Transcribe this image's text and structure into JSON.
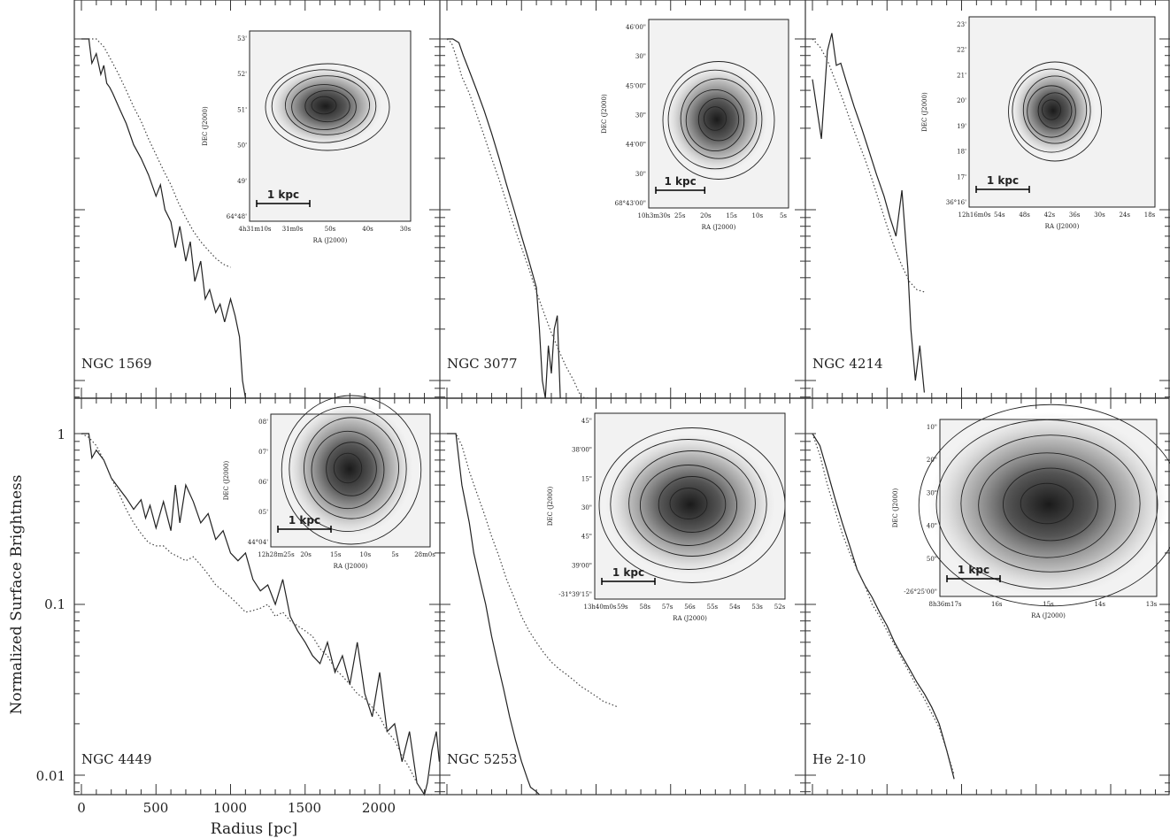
{
  "figure": {
    "ylabel": "Normalized Surface Brightness",
    "xlabel": "Radius [pc]",
    "x_ticks": [
      "0",
      "500",
      "1000",
      "1500",
      "2000"
    ],
    "y_ticks": [
      "1",
      "0.1",
      "0.01"
    ]
  },
  "chart_data": [
    {
      "type": "line",
      "panel": "NGC 1569",
      "xlim": [
        -60,
        2400
      ],
      "ylim": [
        0.0065,
        1.6
      ],
      "ylog": true,
      "series": [
        {
          "style": "solid",
          "x": [
            0,
            50,
            70,
            100,
            130,
            150,
            170,
            190,
            210,
            250,
            300,
            350,
            400,
            450,
            500,
            530,
            560,
            600,
            630,
            660,
            700,
            730,
            760,
            800,
            830,
            860,
            900,
            930,
            960,
            1000,
            1030,
            1060,
            1080,
            1100
          ],
          "y": [
            1,
            1,
            0.72,
            0.82,
            0.62,
            0.7,
            0.55,
            0.52,
            0.48,
            0.4,
            0.32,
            0.24,
            0.2,
            0.16,
            0.12,
            0.14,
            0.1,
            0.085,
            0.06,
            0.08,
            0.05,
            0.065,
            0.038,
            0.05,
            0.03,
            0.034,
            0.025,
            0.028,
            0.022,
            0.03,
            0.024,
            0.018,
            0.01,
            0.006
          ]
        },
        {
          "style": "dotted",
          "x": [
            0,
            50,
            100,
            150,
            200,
            250,
            300,
            350,
            400,
            450,
            500,
            550,
            600,
            650,
            700,
            750,
            800,
            850,
            900,
            950,
            1000
          ],
          "y": [
            1,
            1,
            1,
            0.9,
            0.75,
            0.62,
            0.5,
            0.4,
            0.33,
            0.26,
            0.21,
            0.17,
            0.14,
            0.11,
            0.09,
            0.075,
            0.065,
            0.058,
            0.052,
            0.048,
            0.046
          ]
        }
      ]
    },
    {
      "type": "line",
      "panel": "NGC 3077",
      "xlim": [
        -60,
        2400
      ],
      "ylim": [
        0.0065,
        1.6
      ],
      "ylog": true,
      "series": [
        {
          "style": "solid",
          "x": [
            0,
            40,
            80,
            110,
            150,
            200,
            250,
            300,
            350,
            400,
            450,
            500,
            550,
            600,
            620,
            640,
            660,
            680,
            700,
            720,
            740,
            760
          ],
          "y": [
            1,
            1,
            0.95,
            0.8,
            0.65,
            0.5,
            0.38,
            0.28,
            0.2,
            0.14,
            0.1,
            0.07,
            0.05,
            0.035,
            0.02,
            0.01,
            0.006,
            0.016,
            0.011,
            0.02,
            0.024,
            0.006
          ]
        },
        {
          "style": "dotted",
          "x": [
            0,
            30,
            60,
            100,
            150,
            200,
            250,
            300,
            350,
            400,
            450,
            500,
            550,
            600,
            650,
            700,
            750,
            800,
            850,
            900,
            950
          ],
          "y": [
            1,
            0.95,
            0.8,
            0.6,
            0.48,
            0.36,
            0.27,
            0.2,
            0.15,
            0.11,
            0.08,
            0.06,
            0.045,
            0.033,
            0.025,
            0.019,
            0.015,
            0.012,
            0.01,
            0.008,
            0.0065
          ]
        }
      ]
    },
    {
      "type": "line",
      "panel": "NGC 4214",
      "xlim": [
        -60,
        2400
      ],
      "ylim": [
        0.0065,
        1.6
      ],
      "ylog": true,
      "series": [
        {
          "style": "solid",
          "x": [
            0,
            60,
            100,
            130,
            160,
            190,
            230,
            280,
            330,
            380,
            430,
            480,
            520,
            560,
            600,
            640,
            660,
            690,
            720,
            750
          ],
          "y": [
            0.58,
            0.26,
            0.85,
            1.08,
            0.7,
            0.72,
            0.55,
            0.4,
            0.3,
            0.22,
            0.16,
            0.12,
            0.09,
            0.07,
            0.13,
            0.045,
            0.02,
            0.01,
            0.016,
            0.0085
          ]
        },
        {
          "style": "dotted",
          "x": [
            0,
            50,
            100,
            150,
            200,
            250,
            300,
            350,
            400,
            450,
            500,
            550,
            600,
            650,
            700,
            750
          ],
          "y": [
            1,
            0.9,
            0.75,
            0.58,
            0.45,
            0.34,
            0.26,
            0.2,
            0.15,
            0.11,
            0.08,
            0.06,
            0.047,
            0.038,
            0.034,
            0.033
          ]
        }
      ]
    },
    {
      "type": "line",
      "panel": "NGC 4449",
      "xlim": [
        -60,
        2400
      ],
      "ylim": [
        0.0065,
        1.6
      ],
      "ylog": true,
      "series": [
        {
          "style": "solid",
          "x": [
            0,
            50,
            70,
            100,
            150,
            200,
            250,
            300,
            350,
            400,
            430,
            460,
            500,
            550,
            600,
            630,
            660,
            700,
            750,
            800,
            850,
            900,
            950,
            1000,
            1050,
            1100,
            1150,
            1200,
            1250,
            1300,
            1350,
            1400,
            1450,
            1500,
            1550,
            1600,
            1650,
            1700,
            1750,
            1800,
            1850,
            1900,
            1950,
            2000,
            2050,
            2100,
            2150,
            2200,
            2250,
            2300,
            2320,
            2350,
            2380,
            2400
          ],
          "y": [
            1,
            1,
            0.72,
            0.8,
            0.7,
            0.55,
            0.48,
            0.42,
            0.36,
            0.41,
            0.32,
            0.38,
            0.28,
            0.4,
            0.27,
            0.5,
            0.3,
            0.5,
            0.4,
            0.3,
            0.34,
            0.24,
            0.27,
            0.2,
            0.18,
            0.2,
            0.14,
            0.12,
            0.13,
            0.1,
            0.14,
            0.085,
            0.07,
            0.06,
            0.05,
            0.045,
            0.06,
            0.04,
            0.05,
            0.034,
            0.06,
            0.03,
            0.022,
            0.04,
            0.018,
            0.02,
            0.012,
            0.018,
            0.009,
            0.006,
            0.009,
            0.014,
            0.018,
            0.012
          ]
        },
        {
          "style": "dotted",
          "x": [
            0,
            50,
            100,
            150,
            200,
            250,
            300,
            350,
            400,
            450,
            500,
            550,
            600,
            650,
            700,
            750,
            800,
            850,
            900,
            950,
            1000,
            1050,
            1100,
            1150,
            1200,
            1250,
            1300,
            1350,
            1400,
            1450,
            1500,
            1550,
            1600,
            1650,
            1700,
            1750,
            1800,
            1850,
            1900,
            1950,
            2000,
            2050,
            2100,
            2150,
            2200,
            2250,
            2300,
            2350
          ],
          "y": [
            1,
            0.95,
            0.85,
            0.7,
            0.55,
            0.45,
            0.36,
            0.3,
            0.26,
            0.23,
            0.22,
            0.22,
            0.2,
            0.19,
            0.18,
            0.19,
            0.17,
            0.15,
            0.13,
            0.12,
            0.11,
            0.1,
            0.09,
            0.092,
            0.095,
            0.1,
            0.085,
            0.09,
            0.08,
            0.075,
            0.07,
            0.065,
            0.055,
            0.05,
            0.042,
            0.038,
            0.034,
            0.03,
            0.028,
            0.025,
            0.022,
            0.018,
            0.016,
            0.013,
            0.011,
            0.009,
            0.0075,
            0.0065
          ]
        }
      ]
    },
    {
      "type": "line",
      "panel": "NGC 5253",
      "xlim": [
        -60,
        2400
      ],
      "ylim": [
        0.0065,
        1.6
      ],
      "ylog": true,
      "series": [
        {
          "style": "solid",
          "x": [
            0,
            60,
            100,
            150,
            180,
            220,
            260,
            300,
            340,
            380,
            420,
            460,
            500,
            540,
            560,
            600,
            620
          ],
          "y": [
            1,
            1,
            0.5,
            0.3,
            0.2,
            0.14,
            0.1,
            0.065,
            0.045,
            0.032,
            0.022,
            0.016,
            0.012,
            0.0095,
            0.0085,
            0.008,
            0.0065
          ]
        },
        {
          "style": "dotted",
          "x": [
            0,
            60,
            100,
            150,
            200,
            250,
            300,
            350,
            400,
            450,
            500,
            550,
            600,
            650,
            700,
            750,
            800,
            850,
            900,
            950,
            1000,
            1050,
            1100,
            1150
          ],
          "y": [
            1,
            1,
            0.85,
            0.6,
            0.45,
            0.34,
            0.25,
            0.19,
            0.14,
            0.11,
            0.085,
            0.07,
            0.06,
            0.052,
            0.046,
            0.042,
            0.039,
            0.036,
            0.033,
            0.031,
            0.029,
            0.027,
            0.026,
            0.025
          ]
        }
      ]
    },
    {
      "type": "line",
      "panel": "He 2-10",
      "xlim": [
        -60,
        2400
      ],
      "ylim": [
        0.0065,
        1.6
      ],
      "ylog": true,
      "series": [
        {
          "style": "solid",
          "x": [
            0,
            50,
            100,
            150,
            200,
            250,
            300,
            350,
            400,
            450,
            500,
            550,
            600,
            650,
            700,
            750,
            800,
            850,
            900,
            950
          ],
          "y": [
            1,
            0.85,
            0.6,
            0.42,
            0.3,
            0.22,
            0.16,
            0.13,
            0.11,
            0.09,
            0.075,
            0.06,
            0.05,
            0.042,
            0.035,
            0.03,
            0.025,
            0.02,
            0.014,
            0.0095
          ]
        },
        {
          "style": "dotted",
          "x": [
            0,
            50,
            100,
            150,
            200,
            250,
            300,
            350,
            400,
            450,
            500,
            550,
            600,
            650,
            700,
            750,
            800,
            850,
            900,
            950
          ],
          "y": [
            1,
            0.75,
            0.5,
            0.36,
            0.26,
            0.2,
            0.16,
            0.13,
            0.1,
            0.085,
            0.07,
            0.058,
            0.048,
            0.04,
            0.033,
            0.028,
            0.023,
            0.019,
            0.014,
            0.01
          ]
        }
      ]
    }
  ],
  "insets": [
    {
      "panel": "NGC 1569",
      "ylabel": "DEC (J2000)",
      "xlabel": "RA (J2000)",
      "scale_bar": "1 kpc",
      "y_ticks": [
        "53'",
        "52'",
        "51'",
        "50'",
        "49'",
        "64°48'"
      ],
      "x_ticks": [
        "4h31m10s",
        "31m0s",
        "50s",
        "40s",
        "30s"
      ]
    },
    {
      "panel": "NGC 3077",
      "ylabel": "DEC (J2000)",
      "xlabel": "RA (J2000)",
      "scale_bar": "1 kpc",
      "y_ticks": [
        "46'00\"",
        "30\"",
        "45'00\"",
        "30\"",
        "44'00\"",
        "30\"",
        "68°43'00\""
      ],
      "x_ticks": [
        "10h3m30s",
        "25s",
        "20s",
        "15s",
        "10s",
        "5s"
      ]
    },
    {
      "panel": "NGC 4214",
      "ylabel": "DEC (J2000)",
      "xlabel": "RA (J2000)",
      "scale_bar": "1 kpc",
      "y_ticks": [
        "23'",
        "22'",
        "21'",
        "20'",
        "19'",
        "18'",
        "17'",
        "36°16'"
      ],
      "x_ticks": [
        "12h16m0s",
        "54s",
        "48s",
        "42s",
        "36s",
        "30s",
        "24s",
        "18s"
      ]
    },
    {
      "panel": "NGC 4449",
      "ylabel": "DEC (J2000)",
      "xlabel": "RA (J2000)",
      "scale_bar": "1 kpc",
      "y_ticks": [
        "08'",
        "07'",
        "06'",
        "05'",
        "44°04'"
      ],
      "x_ticks": [
        "12h28m25s",
        "20s",
        "15s",
        "10s",
        "5s",
        "28m0s"
      ]
    },
    {
      "panel": "NGC 5253",
      "ylabel": "DEC (J2000)",
      "xlabel": "RA (J2000)",
      "scale_bar": "1 kpc",
      "y_ticks": [
        "45\"",
        "38'00\"",
        "15\"",
        "30\"",
        "45\"",
        "39'00\"",
        "-31°39'15\""
      ],
      "x_ticks": [
        "13h40m0s",
        "59s",
        "58s",
        "57s",
        "56s",
        "55s",
        "54s",
        "53s",
        "52s"
      ]
    },
    {
      "panel": "He 2-10",
      "ylabel": "DEC (J2000)",
      "xlabel": "RA (J2000)",
      "scale_bar": "1 kpc",
      "y_ticks": [
        "10\"",
        "20\"",
        "30\"",
        "40\"",
        "50\"",
        "-26°25'00\""
      ],
      "x_ticks": [
        "8h36m17s",
        "16s",
        "15s",
        "14s",
        "13s"
      ]
    }
  ]
}
